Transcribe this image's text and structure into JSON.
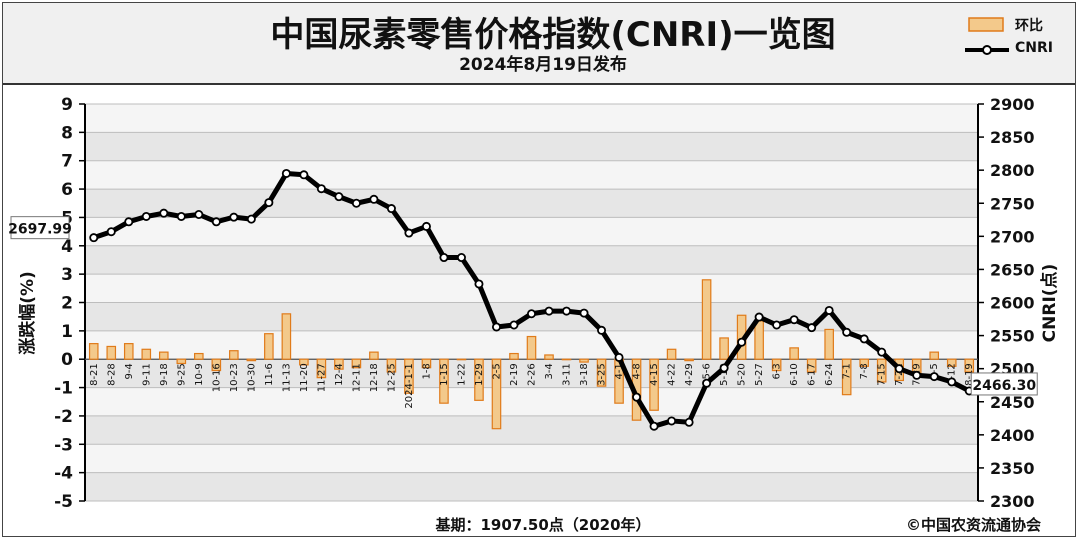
{
  "header": {
    "title": "中国尿素零售价格指数(CNRI)一览图",
    "subtitle": "2024年8月19日发布"
  },
  "legend": {
    "bar_label": "环比",
    "line_label": "CNRI"
  },
  "footer": {
    "base_text": "基期：1907.50点（2020年）",
    "copyright": "©中国农资流通协会"
  },
  "colors": {
    "bar_fill": "#f3c98b",
    "bar_edge": "#e07b1a",
    "line": "#000000",
    "marker_fill": "#ffffff",
    "grid": "#bdbdbd",
    "plot_band": "#e6e6e6"
  },
  "chart_data": {
    "type": "bar",
    "categories": [
      "8-21",
      "8-28",
      "9-4",
      "9-11",
      "9-18",
      "9-25",
      "10-9",
      "10-16",
      "10-23",
      "10-30",
      "11-6",
      "11-13",
      "11-20",
      "11-27",
      "12-4",
      "12-11",
      "12-18",
      "12-25",
      "2024-1-1",
      "1-8",
      "1-15",
      "1-22",
      "1-29",
      "2-5",
      "2-19",
      "2-26",
      "3-4",
      "3-11",
      "3-18",
      "3-25",
      "4-1",
      "4-8",
      "4-15",
      "4-22",
      "4-29",
      "5-6",
      "5-13",
      "5-20",
      "5-27",
      "6-3",
      "6-10",
      "6-17",
      "6-24",
      "7-1",
      "7-8",
      "7-15",
      "7-22",
      "7-29",
      "8-5",
      "8-12",
      "8-19"
    ],
    "series": [
      {
        "name": "环比",
        "axis": "left",
        "values": [
          0.55,
          0.45,
          0.55,
          0.35,
          0.25,
          -0.15,
          0.2,
          -0.4,
          0.3,
          -0.05,
          0.9,
          1.6,
          -0.2,
          -0.65,
          -0.35,
          -0.3,
          0.25,
          -0.45,
          -1.2,
          -0.3,
          -1.55,
          0.0,
          -1.45,
          -2.45,
          0.2,
          0.8,
          0.15,
          0.0,
          -0.1,
          -0.95,
          -1.55,
          -2.15,
          -1.8,
          0.35,
          -0.05,
          2.8,
          0.75,
          1.55,
          1.35,
          -0.4,
          0.4,
          -0.45,
          1.05,
          -1.25,
          -0.25,
          -0.8,
          -0.75,
          -0.55,
          0.25,
          -0.25,
          -0.45
        ]
      },
      {
        "name": "CNRI",
        "axis": "right",
        "type": "line",
        "values": [
          2698,
          2707,
          2722,
          2730,
          2735,
          2730,
          2733,
          2722,
          2729,
          2726,
          2751,
          2795,
          2793,
          2772,
          2760,
          2750,
          2756,
          2742,
          2705,
          2715,
          2668,
          2668,
          2628,
          2563,
          2566,
          2583,
          2587,
          2587,
          2584,
          2558,
          2517,
          2457,
          2413,
          2421,
          2419,
          2478,
          2501,
          2540,
          2578,
          2566,
          2574,
          2562,
          2588,
          2555,
          2545,
          2525,
          2500,
          2490,
          2488,
          2480,
          2466.3
        ]
      }
    ],
    "ylabel": "涨跌幅(%)",
    "ylabel_right": "CNRI(点)",
    "ylim": [
      -5,
      9
    ],
    "ylim_right": [
      2300,
      2900
    ],
    "yticks": [
      -5,
      -4,
      -3,
      -2,
      -1,
      0,
      1,
      2,
      3,
      4,
      5,
      6,
      7,
      8,
      9
    ],
    "yticks_right": [
      2300,
      2350,
      2400,
      2450,
      2500,
      2550,
      2600,
      2650,
      2700,
      2750,
      2800,
      2850,
      2900
    ],
    "grid": true,
    "legend_position": "top-right",
    "annotations": {
      "first_value": "2697.99",
      "last_value": "2466.30"
    }
  }
}
